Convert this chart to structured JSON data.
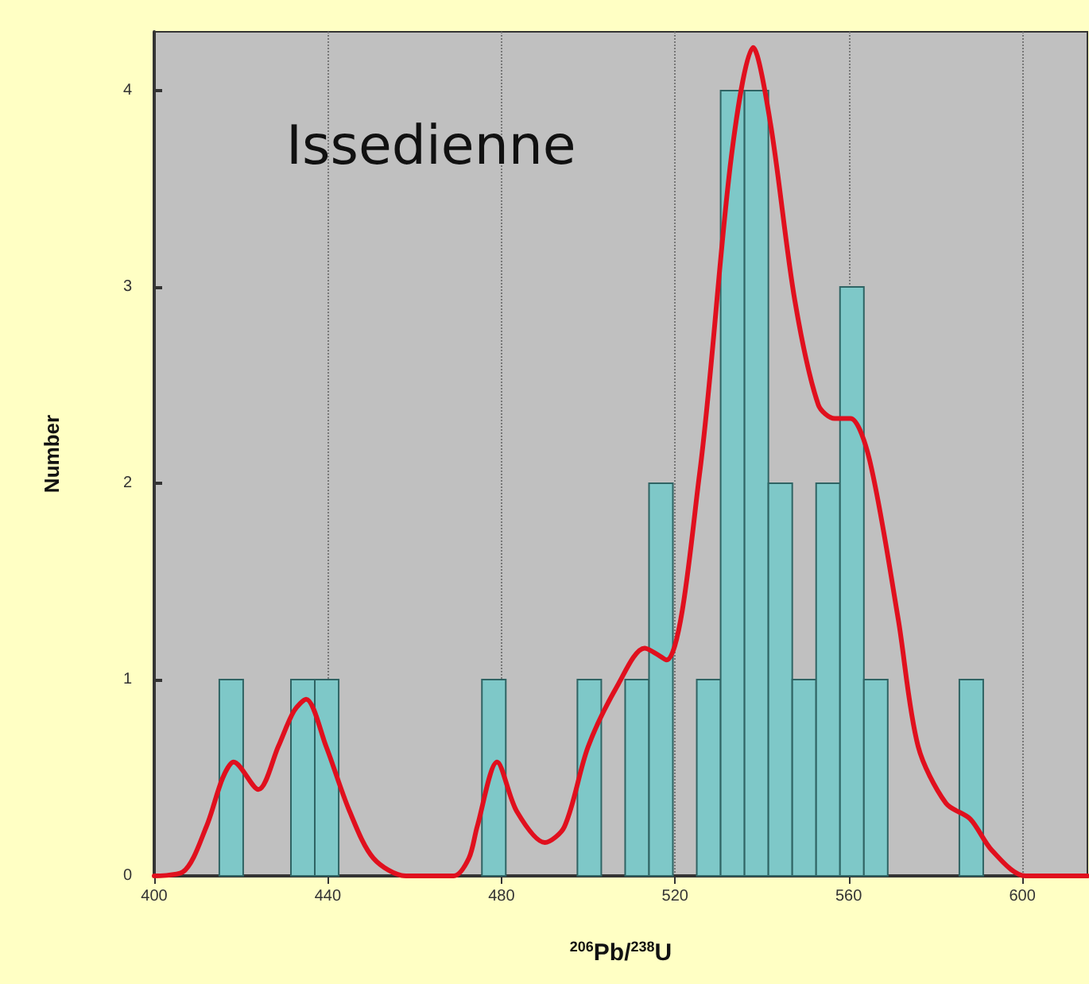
{
  "chart_data": {
    "type": "histogram",
    "title": "Issedienne",
    "xlabel": "$^{206}$Pb/$^{238}$U",
    "ylabel": "Number",
    "xlim": [
      400,
      615
    ],
    "xticks": [
      400,
      440,
      480,
      520,
      560,
      600
    ],
    "ylim": [
      0,
      4.3
    ],
    "yticks": [
      0,
      1,
      2,
      3,
      4
    ],
    "grid": "x",
    "series": [
      {
        "color": "#7ec8c8",
        "bins": [
          415,
          420.5,
          426,
          431.5,
          437,
          442.5,
          448,
          453.5,
          459,
          464.5,
          470,
          475.5,
          481,
          486.5,
          492,
          497.5,
          503,
          508.5,
          514,
          519.5,
          525,
          530.5,
          536,
          541.5,
          547,
          552.5,
          558,
          563.5,
          569,
          574.5,
          580,
          585.5,
          591
        ],
        "values": [
          1,
          0,
          0,
          1,
          1,
          0,
          0,
          0,
          0,
          0,
          0,
          1,
          0,
          0,
          0,
          1,
          0,
          1,
          2,
          0,
          1,
          4,
          4,
          2,
          1,
          2,
          3,
          1,
          0,
          0,
          0,
          1
        ]
      },
      {
        "type": "line",
        "color": "#e0101e",
        "x": [
          400,
          406.6,
          412,
          415.8,
          418.3,
          424,
          428.6,
          432.2,
          435,
          439.6,
          445,
          450.5,
          458,
          469,
          472.5,
          474.4,
          479,
          483.5,
          490,
          494.5,
          500,
          507,
          513,
          518,
          525.6,
          533,
          538,
          542,
          547.6,
          553,
          556.8,
          560.4,
          564.8,
          571.4,
          576,
          582.4,
          588,
          593,
          600.7,
          615
        ],
        "values": [
          0,
          0.02,
          0.25,
          0.5,
          0.58,
          0.44,
          0.66,
          0.84,
          0.9,
          0.66,
          0.33,
          0.09,
          0,
          0,
          0.09,
          0.25,
          0.58,
          0.33,
          0.17,
          0.25,
          0.66,
          0.98,
          1.16,
          1.1,
          2.04,
          3.67,
          4.22,
          3.83,
          2.93,
          2.4,
          2.33,
          2.33,
          2.12,
          1.31,
          0.66,
          0.37,
          0.29,
          0.13,
          0,
          0
        ]
      }
    ]
  }
}
